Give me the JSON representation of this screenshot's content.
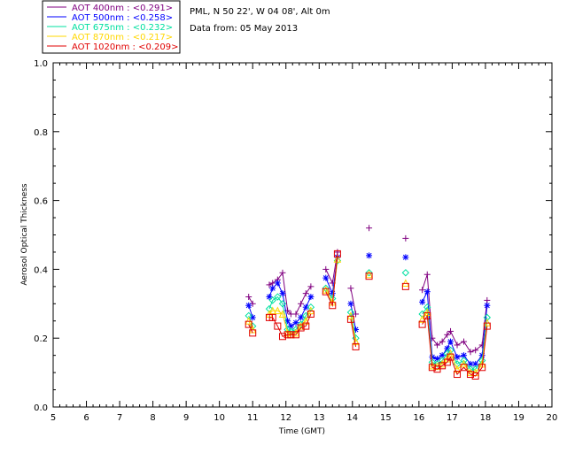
{
  "info": {
    "site": "PML, N 50 22', W 04 08', Alt 0m",
    "date": "Data from: 05 May 2013"
  },
  "chart_data": {
    "type": "scatter",
    "xlabel": "Time (GMT)",
    "ylabel": "Aerosol Optical Thickness",
    "xlim": [
      5,
      20
    ],
    "ylim": [
      0,
      1
    ],
    "xticks": [
      "5",
      "6",
      "7",
      "8",
      "9",
      "10",
      "11",
      "12",
      "13",
      "14",
      "15",
      "16",
      "17",
      "18",
      "19",
      "20"
    ],
    "yticks": [
      "0.0",
      "0.2",
      "0.4",
      "0.6",
      "0.8",
      "1.0"
    ],
    "grid": false,
    "legend_position": "top-left, outside",
    "series": [
      {
        "name": "AOT  400nm : <0.291>",
        "color": "#800080",
        "marker": "plus",
        "values": [
          [
            10.88,
            0.32
          ],
          [
            11.0,
            0.3
          ],
          [
            11.5,
            0.355
          ],
          [
            11.6,
            0.36
          ],
          [
            11.75,
            0.37
          ],
          [
            11.9,
            0.39
          ],
          [
            12.05,
            0.28
          ],
          [
            12.15,
            0.27
          ],
          [
            12.3,
            0.27
          ],
          [
            12.45,
            0.3
          ],
          [
            12.6,
            0.33
          ],
          [
            12.75,
            0.35
          ],
          [
            13.2,
            0.4
          ],
          [
            13.4,
            0.36
          ],
          [
            13.55,
            0.45
          ],
          [
            13.95,
            0.345
          ],
          [
            14.1,
            0.27
          ],
          [
            14.5,
            0.52
          ],
          [
            15.6,
            0.49
          ],
          [
            16.1,
            0.34
          ],
          [
            16.25,
            0.385
          ],
          [
            16.4,
            0.2
          ],
          [
            16.55,
            0.18
          ],
          [
            16.7,
            0.19
          ],
          [
            16.85,
            0.21
          ],
          [
            16.95,
            0.22
          ],
          [
            17.15,
            0.18
          ],
          [
            17.35,
            0.19
          ],
          [
            17.55,
            0.16
          ],
          [
            17.7,
            0.165
          ],
          [
            17.9,
            0.18
          ],
          [
            18.05,
            0.31
          ]
        ]
      },
      {
        "name": "AOT  500nm : <0.258>",
        "color": "#0000ff",
        "marker": "asterisk",
        "values": [
          [
            10.88,
            0.295
          ],
          [
            11.0,
            0.26
          ],
          [
            11.5,
            0.32
          ],
          [
            11.6,
            0.345
          ],
          [
            11.75,
            0.36
          ],
          [
            11.9,
            0.33
          ],
          [
            12.05,
            0.25
          ],
          [
            12.15,
            0.235
          ],
          [
            12.3,
            0.245
          ],
          [
            12.45,
            0.26
          ],
          [
            12.6,
            0.29
          ],
          [
            12.75,
            0.32
          ],
          [
            13.2,
            0.375
          ],
          [
            13.4,
            0.33
          ],
          [
            13.55,
            0.435
          ],
          [
            13.95,
            0.3
          ],
          [
            14.1,
            0.225
          ],
          [
            14.5,
            0.44
          ],
          [
            15.6,
            0.435
          ],
          [
            16.1,
            0.305
          ],
          [
            16.25,
            0.335
          ],
          [
            16.4,
            0.145
          ],
          [
            16.55,
            0.14
          ],
          [
            16.7,
            0.15
          ],
          [
            16.85,
            0.17
          ],
          [
            16.95,
            0.19
          ],
          [
            17.15,
            0.145
          ],
          [
            17.35,
            0.15
          ],
          [
            17.55,
            0.125
          ],
          [
            17.7,
            0.125
          ],
          [
            17.9,
            0.15
          ],
          [
            18.05,
            0.295
          ]
        ]
      },
      {
        "name": "AOT  675nm : <0.232>",
        "color": "#00e0a0",
        "marker": "diamond",
        "values": [
          [
            10.88,
            0.265
          ],
          [
            11.0,
            0.235
          ],
          [
            11.5,
            0.285
          ],
          [
            11.6,
            0.31
          ],
          [
            11.75,
            0.32
          ],
          [
            11.9,
            0.3
          ],
          [
            12.05,
            0.225
          ],
          [
            12.15,
            0.22
          ],
          [
            12.3,
            0.225
          ],
          [
            12.45,
            0.24
          ],
          [
            12.6,
            0.265
          ],
          [
            12.75,
            0.29
          ],
          [
            13.2,
            0.345
          ],
          [
            13.4,
            0.315
          ],
          [
            13.55,
            0.425
          ],
          [
            13.95,
            0.275
          ],
          [
            14.1,
            0.2
          ],
          [
            14.5,
            0.39
          ],
          [
            15.6,
            0.39
          ],
          [
            16.1,
            0.27
          ],
          [
            16.25,
            0.29
          ],
          [
            16.4,
            0.13
          ],
          [
            16.55,
            0.125
          ],
          [
            16.7,
            0.135
          ],
          [
            16.85,
            0.155
          ],
          [
            16.95,
            0.165
          ],
          [
            17.15,
            0.125
          ],
          [
            17.35,
            0.135
          ],
          [
            17.55,
            0.11
          ],
          [
            17.7,
            0.11
          ],
          [
            17.9,
            0.135
          ],
          [
            18.05,
            0.26
          ]
        ]
      },
      {
        "name": "AOT  870nm : <0.217>",
        "color": "#ffd700",
        "marker": "triangle",
        "values": [
          [
            10.88,
            0.25
          ],
          [
            11.0,
            0.225
          ],
          [
            11.5,
            0.27
          ],
          [
            11.6,
            0.28
          ],
          [
            11.75,
            0.28
          ],
          [
            11.9,
            0.27
          ],
          [
            12.05,
            0.215
          ],
          [
            12.15,
            0.21
          ],
          [
            12.3,
            0.215
          ],
          [
            12.45,
            0.235
          ],
          [
            12.6,
            0.25
          ],
          [
            12.75,
            0.28
          ],
          [
            13.2,
            0.34
          ],
          [
            13.4,
            0.305
          ],
          [
            13.55,
            0.43
          ],
          [
            13.95,
            0.265
          ],
          [
            14.1,
            0.19
          ],
          [
            14.5,
            0.385
          ],
          [
            15.6,
            0.36
          ],
          [
            16.1,
            0.255
          ],
          [
            16.25,
            0.275
          ],
          [
            16.4,
            0.12
          ],
          [
            16.55,
            0.118
          ],
          [
            16.7,
            0.125
          ],
          [
            16.85,
            0.14
          ],
          [
            16.95,
            0.155
          ],
          [
            17.15,
            0.11
          ],
          [
            17.35,
            0.125
          ],
          [
            17.55,
            0.1
          ],
          [
            17.7,
            0.1
          ],
          [
            17.9,
            0.125
          ],
          [
            18.05,
            0.245
          ]
        ]
      },
      {
        "name": "AOT 1020nm : <0.209>",
        "color": "#e00000",
        "marker": "square",
        "values": [
          [
            10.88,
            0.24
          ],
          [
            11.0,
            0.215
          ],
          [
            11.5,
            0.26
          ],
          [
            11.6,
            0.26
          ],
          [
            11.75,
            0.235
          ],
          [
            11.9,
            0.205
          ],
          [
            12.05,
            0.21
          ],
          [
            12.15,
            0.21
          ],
          [
            12.3,
            0.21
          ],
          [
            12.45,
            0.23
          ],
          [
            12.6,
            0.235
          ],
          [
            12.75,
            0.27
          ],
          [
            13.2,
            0.335
          ],
          [
            13.4,
            0.295
          ],
          [
            13.55,
            0.445
          ],
          [
            13.95,
            0.255
          ],
          [
            14.1,
            0.175
          ],
          [
            14.5,
            0.38
          ],
          [
            15.6,
            0.35
          ],
          [
            16.1,
            0.24
          ],
          [
            16.25,
            0.265
          ],
          [
            16.4,
            0.115
          ],
          [
            16.55,
            0.11
          ],
          [
            16.7,
            0.12
          ],
          [
            16.85,
            0.13
          ],
          [
            16.95,
            0.145
          ],
          [
            17.15,
            0.095
          ],
          [
            17.35,
            0.115
          ],
          [
            17.55,
            0.095
          ],
          [
            17.7,
            0.09
          ],
          [
            17.9,
            0.115
          ],
          [
            18.05,
            0.235
          ]
        ]
      }
    ]
  }
}
